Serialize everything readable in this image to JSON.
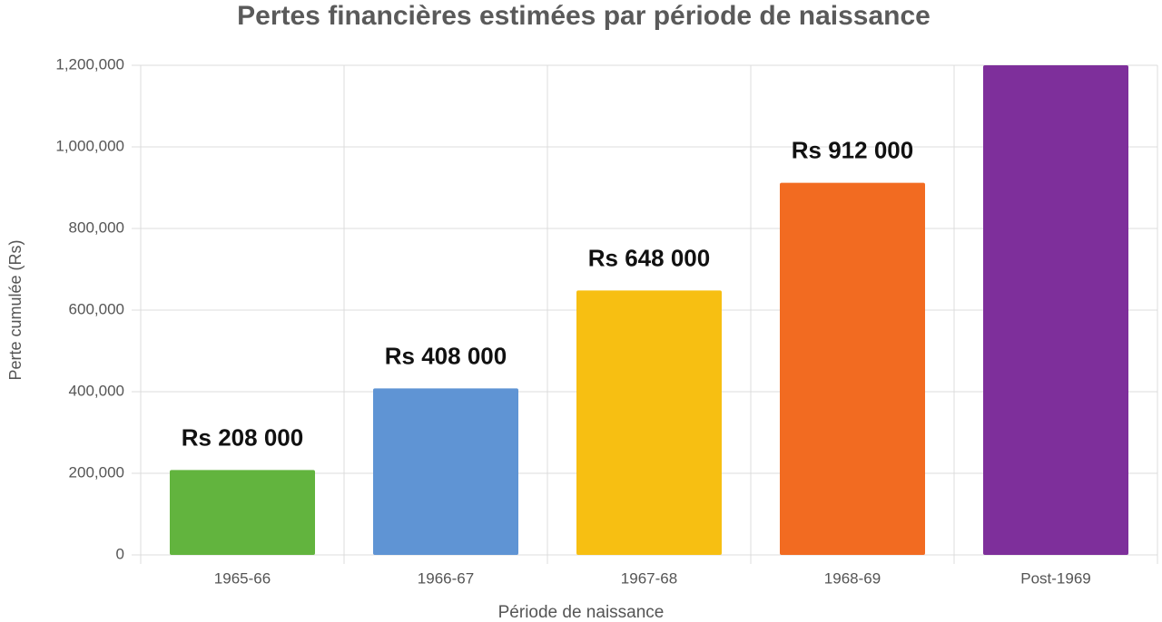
{
  "chart_data": {
    "type": "bar",
    "title": "Pertes financières estimées par période de naissance",
    "x_label": "Période de naissance",
    "y_label": "Perte cumulée (Rs)",
    "categories": [
      "1965-66",
      "1966-67",
      "1967-68",
      "1968-69",
      "Post-1969"
    ],
    "values": [
      208000,
      408000,
      648000,
      912000,
      1200000
    ],
    "value_labels": [
      "Rs 208 000",
      "Rs 408 000",
      "Rs 648 000",
      "Rs 912 000",
      null
    ],
    "colors": [
      "#62b43e",
      "#5f94d4",
      "#f7bf12",
      "#f26b21",
      "#7e2f9b"
    ],
    "ylim": [
      0,
      1200000
    ],
    "yticks": [
      0,
      {
        "value": 200000,
        "label": "200,000"
      },
      {
        "value": 400000,
        "label": "400,000"
      },
      {
        "value": 600000,
        "label": "600,000"
      },
      {
        "value": 800000,
        "label": "800,000"
      },
      {
        "value": 1000000,
        "label": "1,000,000"
      },
      {
        "value": 1200000,
        "label": "1,200,000"
      }
    ],
    "grid": true
  }
}
